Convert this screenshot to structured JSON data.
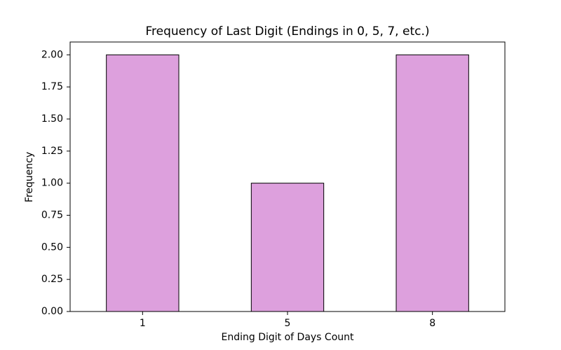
{
  "chart_data": {
    "type": "bar",
    "title": "Frequency of Last Digit (Endings in 0, 5, 7, etc.)",
    "x_label": "Ending Digit of Days Count",
    "y_label": "Frequency",
    "categories": [
      "1",
      "5",
      "8"
    ],
    "values": [
      2,
      1,
      2
    ],
    "color": "#dda0dd",
    "edge_color": "#000000",
    "ylim": [
      0,
      2.1
    ],
    "yticks": [
      {
        "value": 0,
        "label": "0.00"
      },
      {
        "value": 0.25,
        "label": "0.25"
      },
      {
        "value": 0.5,
        "label": "0.50"
      },
      {
        "value": 0.75,
        "label": "0.75"
      },
      {
        "value": 1,
        "label": "1.00"
      },
      {
        "value": 1.25,
        "label": "1.25"
      },
      {
        "value": 1.5,
        "label": "1.50"
      },
      {
        "value": 1.75,
        "label": "1.75"
      },
      {
        "value": 2,
        "label": "2.00"
      }
    ],
    "grid": false
  }
}
